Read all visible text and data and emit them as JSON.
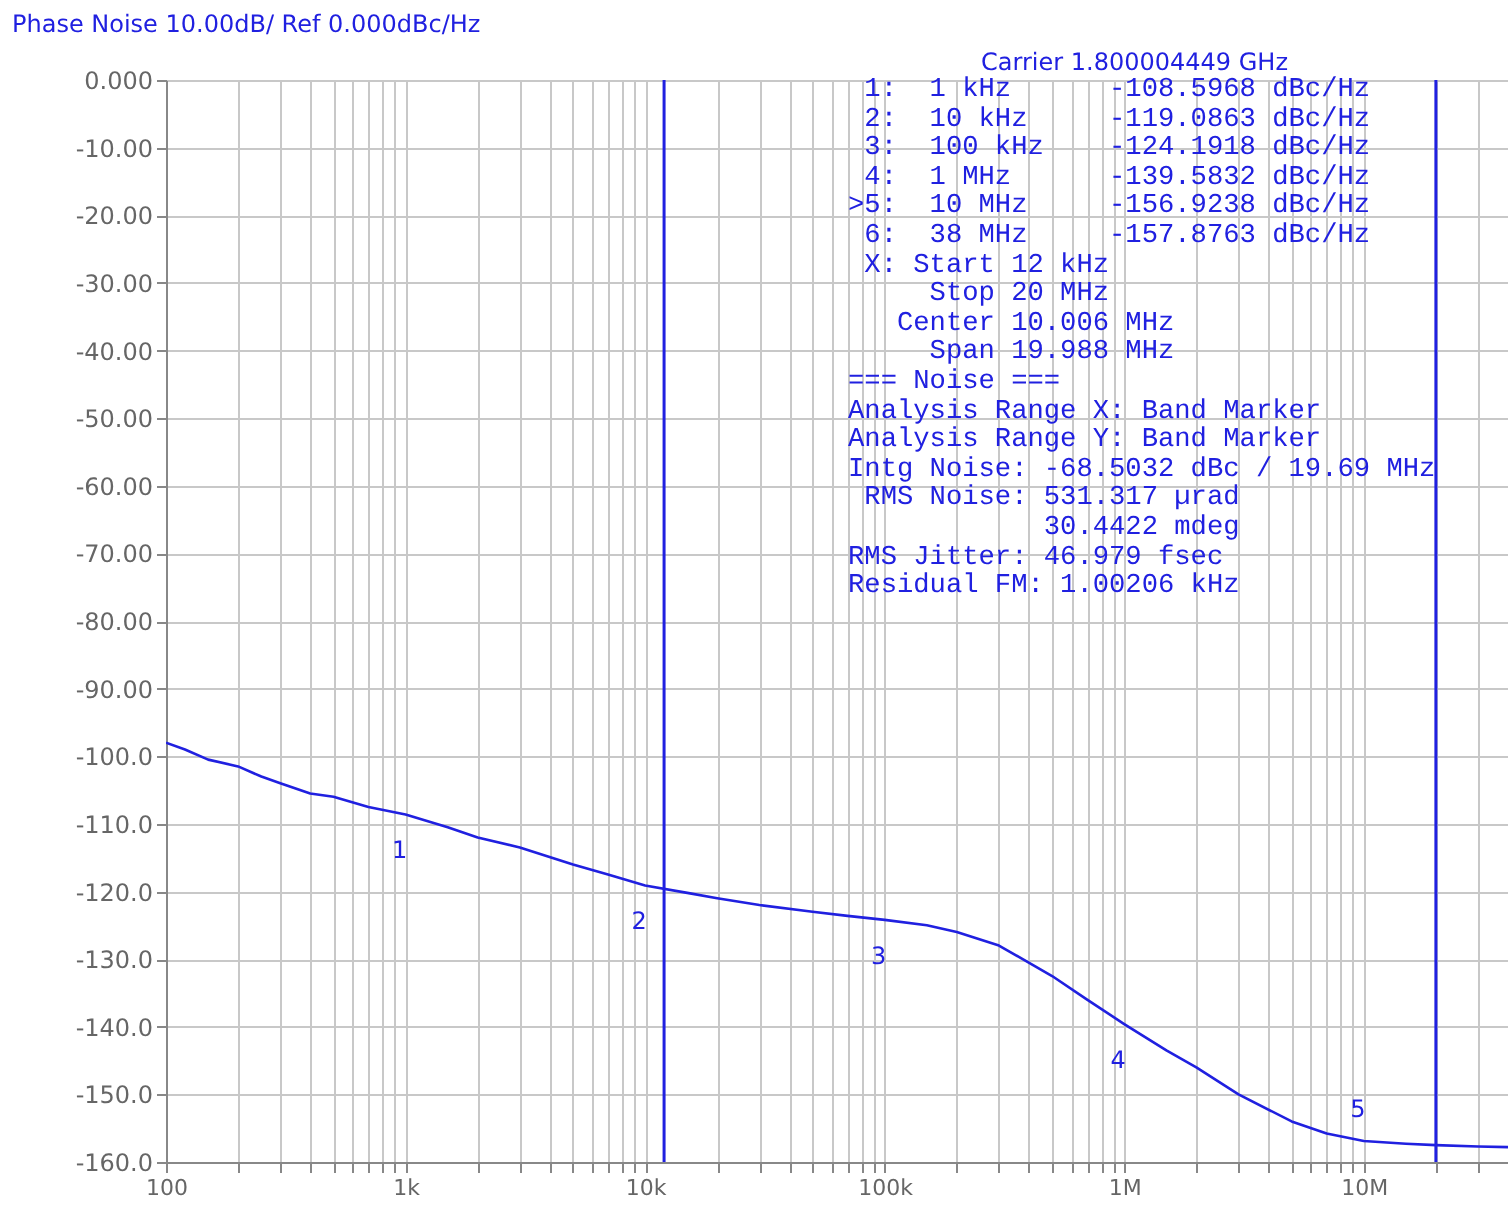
{
  "chart_data": {
    "type": "line",
    "title": "Phase Noise 10.00dB/ Ref 0.000dBc/Hz",
    "x": [
      100,
      120,
      150,
      200,
      250,
      300,
      400,
      500,
      700,
      1000,
      1500,
      2000,
      3000,
      5000,
      7000,
      10000,
      15000,
      20000,
      30000,
      50000,
      70000,
      100000,
      150000,
      200000,
      300000,
      500000,
      700000,
      1000000,
      1500000,
      2000000,
      3000000,
      5000000,
      7000000,
      10000000,
      15000000,
      20000000,
      30000000,
      40000000
    ],
    "series": [
      {
        "color": "#2020e0",
        "values": [
          -98,
          -99,
          -100.5,
          -101.5,
          -103,
          -104,
          -105.5,
          -106,
          -107.5,
          -108.6,
          -110.5,
          -112,
          -113.5,
          -116,
          -117.5,
          -119.1,
          -120.2,
          -121,
          -122,
          -123,
          -123.6,
          -124.2,
          -125,
          -126,
          -128,
          -132.5,
          -136,
          -139.6,
          -143.5,
          -146,
          -150,
          -154,
          -155.8,
          -156.9,
          -157.3,
          -157.5,
          -157.7,
          -157.8
        ]
      }
    ],
    "xlim": [
      100,
      40000000
    ],
    "log": "x",
    "xticks": [
      {
        "value": 100,
        "label": "100"
      },
      {
        "value": 200,
        "label": null
      },
      {
        "value": 300,
        "label": null
      },
      {
        "value": 400,
        "label": null
      },
      {
        "value": 500,
        "label": null
      },
      {
        "value": 600,
        "label": null
      },
      {
        "value": 700,
        "label": null
      },
      {
        "value": 800,
        "label": null
      },
      {
        "value": 900,
        "label": null
      },
      {
        "value": 1000,
        "label": "1k"
      },
      {
        "value": 2000,
        "label": null
      },
      {
        "value": 3000,
        "label": null
      },
      {
        "value": 4000,
        "label": null
      },
      {
        "value": 5000,
        "label": null
      },
      {
        "value": 6000,
        "label": null
      },
      {
        "value": 7000,
        "label": null
      },
      {
        "value": 8000,
        "label": null
      },
      {
        "value": 9000,
        "label": null
      },
      {
        "value": 10000,
        "label": "10k"
      },
      {
        "value": 20000,
        "label": null
      },
      {
        "value": 30000,
        "label": null
      },
      {
        "value": 40000,
        "label": null
      },
      {
        "value": 50000,
        "label": null
      },
      {
        "value": 60000,
        "label": null
      },
      {
        "value": 70000,
        "label": null
      },
      {
        "value": 80000,
        "label": null
      },
      {
        "value": 90000,
        "label": null
      },
      {
        "value": 100000,
        "label": "100k"
      },
      {
        "value": 200000,
        "label": null
      },
      {
        "value": 300000,
        "label": null
      },
      {
        "value": 400000,
        "label": null
      },
      {
        "value": 500000,
        "label": null
      },
      {
        "value": 600000,
        "label": null
      },
      {
        "value": 700000,
        "label": null
      },
      {
        "value": 800000,
        "label": null
      },
      {
        "value": 900000,
        "label": null
      },
      {
        "value": 1000000,
        "label": "1M"
      },
      {
        "value": 2000000,
        "label": null
      },
      {
        "value": 3000000,
        "label": null
      },
      {
        "value": 4000000,
        "label": null
      },
      {
        "value": 5000000,
        "label": null
      },
      {
        "value": 6000000,
        "label": null
      },
      {
        "value": 7000000,
        "label": null
      },
      {
        "value": 8000000,
        "label": null
      },
      {
        "value": 9000000,
        "label": null
      },
      {
        "value": 10000000,
        "label": "10M"
      },
      {
        "value": 20000000,
        "label": null
      },
      {
        "value": 30000000,
        "label": null
      }
    ],
    "ylim": [
      -160,
      0
    ],
    "yticks": [
      {
        "value": 0,
        "label": "0.000"
      },
      {
        "value": -10,
        "label": "-10.00"
      },
      {
        "value": -20,
        "label": "-20.00"
      },
      {
        "value": -30,
        "label": "-30.00"
      },
      {
        "value": -40,
        "label": "-40.00"
      },
      {
        "value": -50,
        "label": "-50.00"
      },
      {
        "value": -60,
        "label": "-60.00"
      },
      {
        "value": -70,
        "label": "-70.00"
      },
      {
        "value": -80,
        "label": "-80.00"
      },
      {
        "value": -90,
        "label": "-90.00"
      },
      {
        "value": -100,
        "label": "-100.0"
      },
      {
        "value": -110,
        "label": "-110.0"
      },
      {
        "value": -120,
        "label": "-120.0"
      },
      {
        "value": -130,
        "label": "-130.0"
      },
      {
        "value": -140,
        "label": "-140.0"
      },
      {
        "value": -150,
        "label": "-150.0"
      },
      {
        "value": -160,
        "label": "-160.0"
      }
    ],
    "grid": true,
    "ref_lines": [
      {
        "axis": "x",
        "value": 12000,
        "color": "#2020e0"
      },
      {
        "axis": "x",
        "value": 20000000,
        "color": "#2020e0"
      }
    ],
    "annotations": [
      {
        "text": "1",
        "x": 1000,
        "y": -108.5968
      },
      {
        "text": "2",
        "x": 10000,
        "y": -119.0863
      },
      {
        "text": "3",
        "x": 100000,
        "y": -124.1918
      },
      {
        "text": "4",
        "x": 1000000,
        "y": -139.5832
      },
      {
        "text": "5",
        "x": 10000000,
        "y": -156.9238
      },
      "Carrier 1.800004449 GHz",
      " 1:  1 kHz      -108.5968 dBc/Hz",
      " 2:  10 kHz     -119.0863 dBc/Hz",
      " 3:  100 kHz    -124.1918 dBc/Hz",
      " 4:  1 MHz      -139.5832 dBc/Hz",
      ">5:  10 MHz     -156.9238 dBc/Hz",
      " 6:  38 MHz     -157.8763 dBc/Hz",
      " X: Start 12 kHz",
      "     Stop 20 MHz",
      "   Center 10.006 MHz",
      "     Span 19.988 MHz",
      "=== Noise ===",
      "Analysis Range X: Band Marker",
      "Analysis Range Y: Band Marker",
      "Intg Noise: -68.5032 dBc / 19.69 MHz",
      " RMS Noise: 531.317 µrad",
      "            30.4422 mdeg",
      "RMS Jitter: 46.979 fsec",
      "Residual FM: 1.00206 kHz"
    ]
  }
}
